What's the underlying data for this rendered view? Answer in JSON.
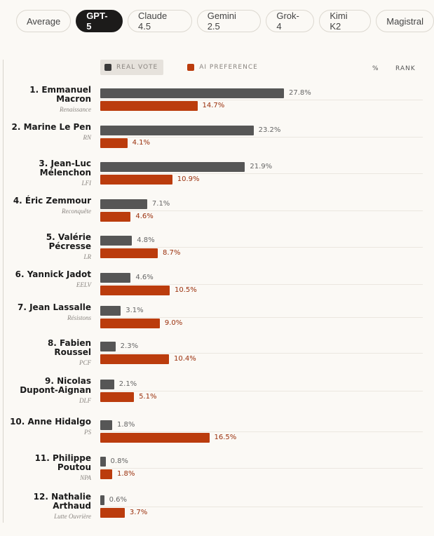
{
  "tabs": [
    {
      "label": "Average",
      "active": false
    },
    {
      "label": "GPT-5",
      "active": true
    },
    {
      "label": "Claude 4.5",
      "active": false
    },
    {
      "label": "Gemini 2.5",
      "active": false
    },
    {
      "label": "Grok-4",
      "active": false
    },
    {
      "label": "Kimi K2",
      "active": false
    },
    {
      "label": "Magistral",
      "active": false
    }
  ],
  "legend": {
    "real_label": "REAL VOTE",
    "ai_label": "AI PREFERENCE",
    "pct_header": "%",
    "rank_header": "RANK"
  },
  "colors": {
    "real": "#565656",
    "ai": "#bb3c0d"
  },
  "chart_data": {
    "type": "bar",
    "orientation": "horizontal",
    "categories": [
      "1. Emmanuel Macron",
      "2. Marine Le Pen",
      "3. Jean-Luc Mélenchon",
      "4. Éric Zemmour",
      "5. Valérie Pécresse",
      "6. Yannick Jadot",
      "7. Jean Lassalle",
      "8. Fabien Roussel",
      "9. Nicolas Dupont-Aignan",
      "10. Anne Hidalgo",
      "11. Philippe Poutou",
      "12. Nathalie Arthaud"
    ],
    "series": [
      {
        "name": "REAL VOTE",
        "values": [
          27.8,
          23.2,
          21.9,
          7.1,
          4.8,
          4.6,
          3.1,
          2.3,
          2.1,
          1.8,
          0.8,
          0.6
        ]
      },
      {
        "name": "AI PREFERENCE",
        "values": [
          14.7,
          4.1,
          10.9,
          4.6,
          8.7,
          10.5,
          9.0,
          10.4,
          5.1,
          16.5,
          1.8,
          3.7
        ]
      }
    ],
    "value_suffix": "%"
  },
  "candidates": [
    {
      "name_lines": [
        "1. Emmanuel",
        "Macron"
      ],
      "party": "Renaissance",
      "real_label": "27.8%",
      "ai_label": "14.7%"
    },
    {
      "name_lines": [
        "2. Marine Le Pen"
      ],
      "party": "RN",
      "real_label": "23.2%",
      "ai_label": "4.1%"
    },
    {
      "name_lines": [
        "3. Jean-Luc",
        "Mélenchon"
      ],
      "party": "LFI",
      "real_label": "21.9%",
      "ai_label": "10.9%"
    },
    {
      "name_lines": [
        "4. Éric Zemmour"
      ],
      "party": "Reconquête",
      "real_label": "7.1%",
      "ai_label": "4.6%"
    },
    {
      "name_lines": [
        "5. Valérie",
        "Pécresse"
      ],
      "party": "LR",
      "real_label": "4.8%",
      "ai_label": "8.7%"
    },
    {
      "name_lines": [
        "6. Yannick Jadot"
      ],
      "party": "EELV",
      "real_label": "4.6%",
      "ai_label": "10.5%"
    },
    {
      "name_lines": [
        "7. Jean Lassalle"
      ],
      "party": "Résistons",
      "real_label": "3.1%",
      "ai_label": "9.0%"
    },
    {
      "name_lines": [
        "8. Fabien",
        "Roussel"
      ],
      "party": "PCF",
      "real_label": "2.3%",
      "ai_label": "10.4%"
    },
    {
      "name_lines": [
        "9. Nicolas",
        "Dupont-Aignan"
      ],
      "party": "DLF",
      "real_label": "2.1%",
      "ai_label": "5.1%"
    },
    {
      "name_lines": [
        "10. Anne Hidalgo"
      ],
      "party": "PS",
      "real_label": "1.8%",
      "ai_label": "16.5%"
    },
    {
      "name_lines": [
        "11. Philippe",
        "Poutou"
      ],
      "party": "NPA",
      "real_label": "0.8%",
      "ai_label": "1.8%"
    },
    {
      "name_lines": [
        "12. Nathalie",
        "Arthaud"
      ],
      "party": "Lutte Ouvrière",
      "real_label": "0.6%",
      "ai_label": "3.7%"
    }
  ]
}
